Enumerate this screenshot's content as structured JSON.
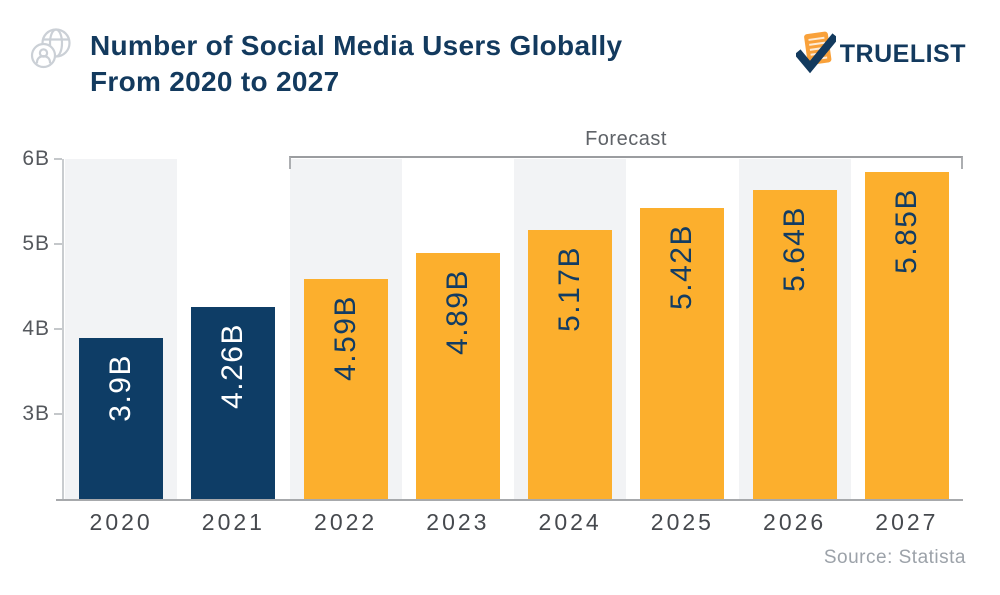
{
  "header": {
    "title_line1": "Number of Social Media Users Globally",
    "title_line2": "From 2020 to 2027",
    "logo_text": "TRUELIST"
  },
  "chart_data": {
    "type": "bar",
    "title": "Number of Social Media Users Globally From 2020 to 2027",
    "categories": [
      "2020",
      "2021",
      "2022",
      "2023",
      "2024",
      "2025",
      "2026",
      "2027"
    ],
    "values": [
      3.9,
      4.26,
      4.59,
      4.89,
      5.17,
      5.42,
      5.64,
      5.85
    ],
    "bar_labels": [
      "3.9B",
      "4.26B",
      "4.59B",
      "4.89B",
      "5.17B",
      "5.42B",
      "5.64B",
      "5.85B"
    ],
    "unit": "billions of users",
    "xlabel": "",
    "ylabel": "",
    "y_axis": {
      "min": 2,
      "max": 6,
      "tick_values": [
        3,
        4,
        5,
        6
      ],
      "tick_labels": [
        "3B",
        "4B",
        "5B",
        "6B"
      ]
    },
    "grid": false,
    "legend": false,
    "forecast_start_index": 2,
    "annotation": {
      "label": "Forecast",
      "start_category": "2022",
      "end_category": "2027"
    },
    "colors": {
      "actual_bar": "#0E3D66",
      "forecast_bar": "#FCAF2D",
      "alt_column_band": "#F2F3F5",
      "label_on_actual": "#FFFFFF",
      "label_on_forecast": "#123C63"
    }
  },
  "footer": {
    "source": "Source: Statista"
  },
  "theme": {
    "navy": "#133A5E",
    "orange": "#F9A13A",
    "axis_line": "#C9CCCF",
    "baseline": "#A7A9AC",
    "bracket": "#9B9DA0",
    "tick_text": "#55585D",
    "year_text": "#46494E",
    "forecast_text": "#5F6368",
    "source_text": "#9CA2A9",
    "icon_gray": "#CBD0D6"
  }
}
